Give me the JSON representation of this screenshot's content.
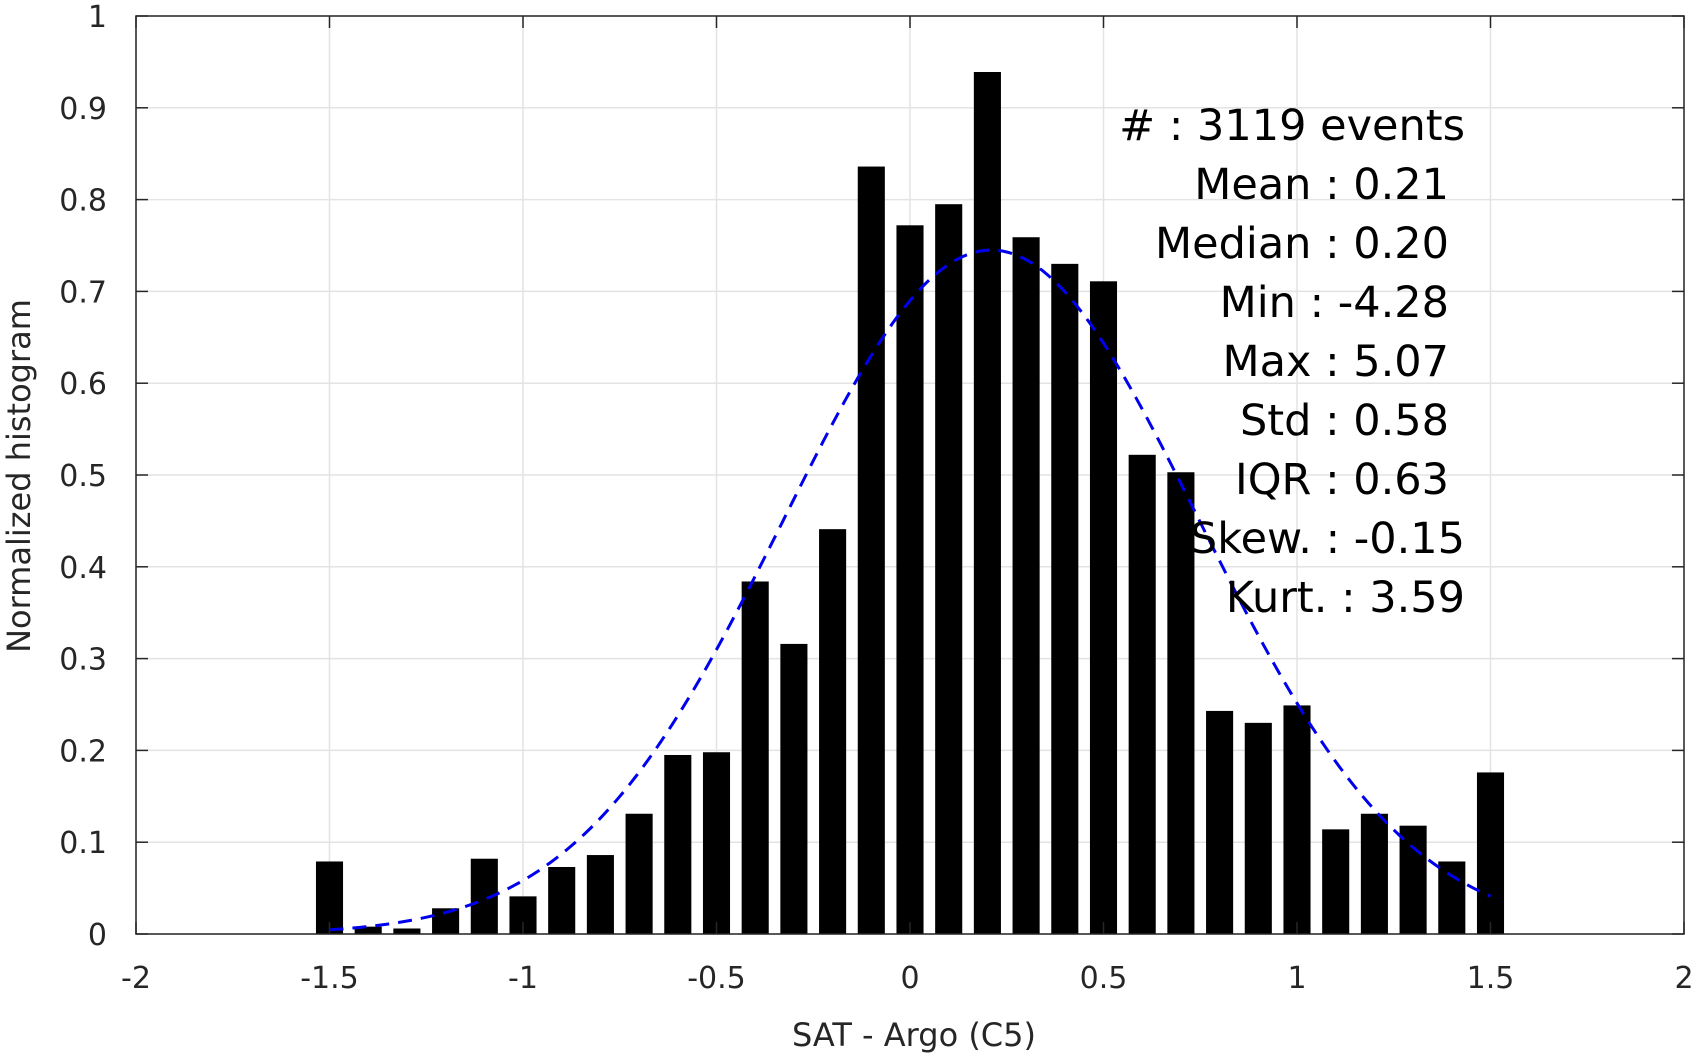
{
  "chart_data": {
    "type": "bar",
    "title": "",
    "xlabel": "SAT - Argo (C5)",
    "ylabel": "Normalized histogram",
    "xlim": [
      -2,
      2
    ],
    "ylim": [
      0,
      1
    ],
    "xticks": [
      -2,
      -1.5,
      -1,
      -0.5,
      0,
      0.5,
      1,
      1.5,
      2
    ],
    "xtick_labels": [
      "-2",
      "-1.5",
      "-1",
      "-0.5",
      "0",
      "0.5",
      "1",
      "1.5",
      "2"
    ],
    "yticks": [
      0,
      0.1,
      0.2,
      0.3,
      0.4,
      0.5,
      0.6,
      0.7,
      0.8,
      0.9,
      1
    ],
    "ytick_labels": [
      "0",
      "0.1",
      "0.2",
      "0.3",
      "0.4",
      "0.5",
      "0.6",
      "0.7",
      "0.8",
      "0.9",
      "1"
    ],
    "grid": true,
    "bar_width": 0.07,
    "bar_color": "#000000",
    "bars": {
      "x": [
        -1.5,
        -1.4,
        -1.3,
        -1.2,
        -1.1,
        -1.0,
        -0.9,
        -0.8,
        -0.7,
        -0.6,
        -0.5,
        -0.4,
        -0.3,
        -0.2,
        -0.1,
        0.0,
        0.1,
        0.2,
        0.3,
        0.4,
        0.5,
        0.6,
        0.7,
        0.8,
        0.9,
        1.0,
        1.1,
        1.2,
        1.3,
        1.4,
        1.5
      ],
      "values": [
        0.079,
        0.008,
        0.006,
        0.028,
        0.082,
        0.041,
        0.073,
        0.086,
        0.131,
        0.195,
        0.198,
        0.384,
        0.316,
        0.441,
        0.836,
        0.772,
        0.795,
        0.939,
        0.759,
        0.73,
        0.711,
        0.522,
        0.503,
        0.243,
        0.23,
        0.249,
        0.114,
        0.131,
        0.118,
        0.079,
        0.176
      ]
    },
    "fit_curve": {
      "style": "dashed",
      "color": "#0000ee",
      "mean": 0.21,
      "std": 0.536,
      "peak": 0.745,
      "x_range": [
        -1.5,
        1.5
      ]
    },
    "annotations": [
      "#  : 3119 events",
      "Mean : 0.21",
      "Median : 0.20",
      "Min : -4.28",
      "Max : 5.07",
      "Std : 0.58",
      "IQR : 0.63",
      "Skew. : -0.15",
      "Kurt. : 3.59"
    ]
  }
}
